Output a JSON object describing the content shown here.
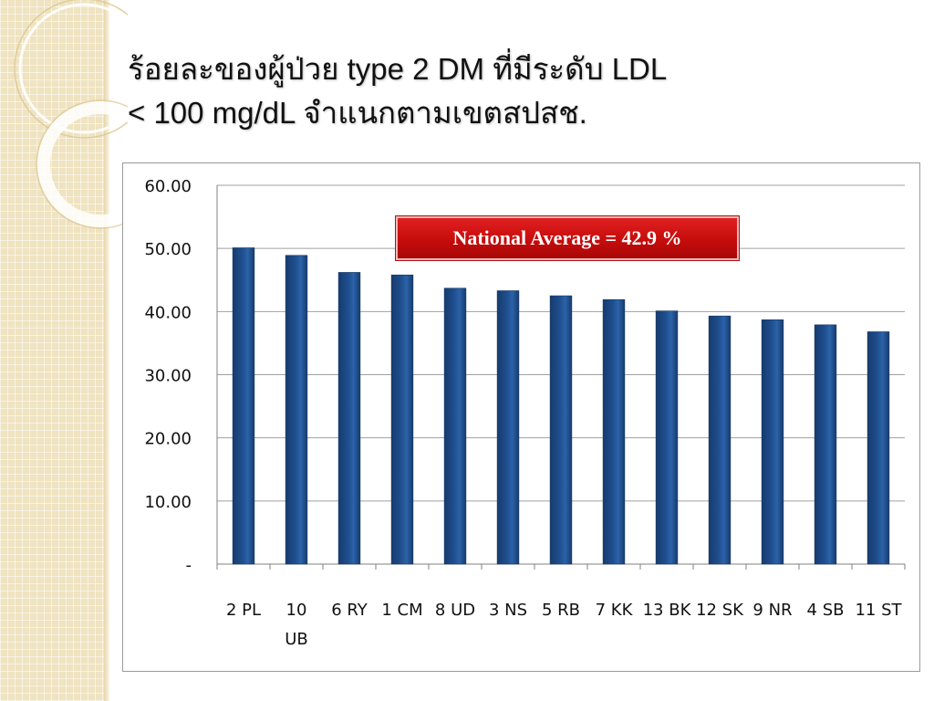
{
  "slide": {
    "title_line1": "ร้อยละของผู้ป่วย type 2 DM ที่มีระดับ LDL",
    "title_line2": "< 100 mg/dL จำแนกตามเขตสปสช."
  },
  "annotation": {
    "text": "National Average = 42.9 %",
    "value": 42.9,
    "color": "#c8102e"
  },
  "chart_data": {
    "type": "bar",
    "categories": [
      "2 PL",
      "10 UB",
      "6 RY",
      "1 CM",
      "8 UD",
      "3 NS",
      "5 RB",
      "7 KK",
      "13 BK",
      "12 SK",
      "9 NR",
      "4 SB",
      "11 ST"
    ],
    "category_label_lines": [
      [
        "2 PL"
      ],
      [
        "10",
        "UB"
      ],
      [
        "6 RY"
      ],
      [
        "1 CM"
      ],
      [
        "8 UD"
      ],
      [
        "3 NS"
      ],
      [
        "5 RB"
      ],
      [
        "7 KK"
      ],
      [
        "13 BK"
      ],
      [
        "12 SK"
      ],
      [
        "9 NR"
      ],
      [
        "4 SB"
      ],
      [
        "11 ST"
      ]
    ],
    "values": [
      50.1,
      48.9,
      46.2,
      45.8,
      43.7,
      43.3,
      42.5,
      41.9,
      40.1,
      39.3,
      38.7,
      37.9,
      36.8
    ],
    "ylim": [
      0,
      60
    ],
    "yticks": [
      0,
      10,
      20,
      30,
      40,
      50,
      60
    ],
    "ytick_labels": [
      "-",
      "10.00",
      "20.00",
      "30.00",
      "40.00",
      "50.00",
      "60.00"
    ],
    "title": "",
    "xlabel": "",
    "ylabel": "",
    "grid": true,
    "legend": "none",
    "bar_color": "#1f4f8f"
  }
}
